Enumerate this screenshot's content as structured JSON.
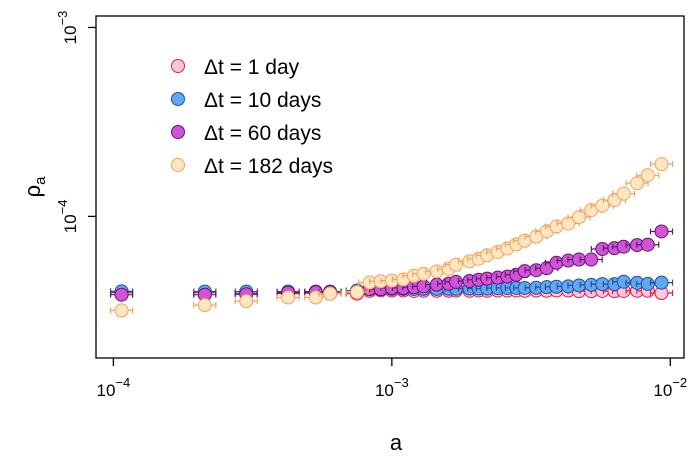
{
  "chart_data": {
    "type": "scatter",
    "xlabel": "a",
    "ylabel": "ρ",
    "ylabel_sub": "a",
    "x_scale": "log",
    "y_scale": "log",
    "xlim": [
      8.66e-05,
      0.0112
    ],
    "ylim": [
      1.78e-05,
      0.00115
    ],
    "grid": false,
    "legend_position": "top-left",
    "x_ticks": [
      {
        "base": "10",
        "exp": "−4",
        "value": 0.0001
      },
      {
        "base": "10",
        "exp": "−3",
        "value": 0.001
      },
      {
        "base": "10",
        "exp": "−2",
        "value": 0.01
      }
    ],
    "y_ticks": [
      {
        "base": "10",
        "exp": "−4",
        "value": 0.0001
      },
      {
        "base": "10",
        "exp": "−3",
        "value": 0.001
      }
    ],
    "x": [
      0.000107,
      0.000213,
      0.0003,
      0.000424,
      0.000533,
      0.0006,
      0.00075,
      0.000832,
      0.000912,
      0.001,
      0.0011,
      0.0012,
      0.0013,
      0.00145,
      0.0016,
      0.0017,
      0.0019,
      0.00205,
      0.0022,
      0.0024,
      0.0026,
      0.0028,
      0.003,
      0.0033,
      0.0036,
      0.0039,
      0.0043,
      0.0047,
      0.0052,
      0.0057,
      0.0063,
      0.0068,
      0.0076,
      0.0083,
      0.0093
    ],
    "series": [
      {
        "name": "Δt = 1 day",
        "color": "#e8174a",
        "fill": "#fdc9d9",
        "values": [
          3.95e-05,
          3.95e-05,
          3.92e-05,
          3.9e-05,
          3.92e-05,
          3.9e-05,
          3.9e-05,
          4.04e-05,
          4.06e-05,
          4.05e-05,
          4.05e-05,
          4.03e-05,
          4.04e-05,
          4.04e-05,
          4.04e-05,
          4.05e-05,
          4.04e-05,
          4.05e-05,
          4.04e-05,
          4.05e-05,
          4.05e-05,
          4.05e-05,
          4.04e-05,
          4.05e-05,
          4.04e-05,
          4.05e-05,
          4.05e-05,
          4.02e-05,
          4.02e-05,
          4.03e-05,
          4.02e-05,
          4.03e-05,
          4.04e-05,
          4.04e-05,
          3.93e-05
        ]
      },
      {
        "name": "Δt = 10 days",
        "color": "#1f4f9e",
        "fill": "#61a8f0",
        "values": [
          4.01e-05,
          4e-05,
          4e-05,
          4e-05,
          4e-05,
          4e-05,
          4.05e-05,
          4.12e-05,
          4.12e-05,
          4.13e-05,
          4.13e-05,
          4.13e-05,
          4.13e-05,
          4.13e-05,
          4.14e-05,
          4.14e-05,
          4.15e-05,
          4.15e-05,
          4.15e-05,
          4.17e-05,
          4.18e-05,
          4.18e-05,
          4.18e-05,
          4.19e-05,
          4.22e-05,
          4.24e-05,
          4.26e-05,
          4.31e-05,
          4.34e-05,
          4.38e-05,
          4.38e-05,
          4.51e-05,
          4.45e-05,
          4.39e-05,
          4.46e-05
        ]
      },
      {
        "name": "Δt = 60 days",
        "color": "#5e1872",
        "fill": "#d252d8",
        "values": [
          3.85e-05,
          3.85e-05,
          3.87e-05,
          3.95e-05,
          3.97e-05,
          3.97e-05,
          3.97e-05,
          4.12e-05,
          4.12e-05,
          4.18e-05,
          4.18e-05,
          4.22e-05,
          4.26e-05,
          4.35e-05,
          4.4e-05,
          4.5e-05,
          4.55e-05,
          4.62e-05,
          4.68e-05,
          4.74e-05,
          4.8e-05,
          4.91e-05,
          5.13e-05,
          5.19e-05,
          5.32e-05,
          5.68e-05,
          5.84e-05,
          5.91e-05,
          5.91e-05,
          6.72e-05,
          6.79e-05,
          6.91e-05,
          7.05e-05,
          7.08e-05,
          8.32e-05
        ]
      },
      {
        "name": "Δt = 182 days",
        "color": "#f5a25a",
        "fill": "#fde7c3",
        "values": [
          3.18e-05,
          3.39e-05,
          3.56e-05,
          3.72e-05,
          3.72e-05,
          3.9e-05,
          3.97e-05,
          4.47e-05,
          4.53e-05,
          4.57e-05,
          4.64e-05,
          4.85e-05,
          4.97e-05,
          5.12e-05,
          5.27e-05,
          5.55e-05,
          5.78e-05,
          5.96e-05,
          6.23e-05,
          6.47e-05,
          6.76e-05,
          7.11e-05,
          7.43e-05,
          7.81e-05,
          8.34e-05,
          8.85e-05,
          9.17e-05,
          9.91e-05,
          0.000108,
          0.000114,
          0.000122,
          0.000132,
          0.00015,
          0.000165,
          0.000189
        ]
      }
    ]
  }
}
